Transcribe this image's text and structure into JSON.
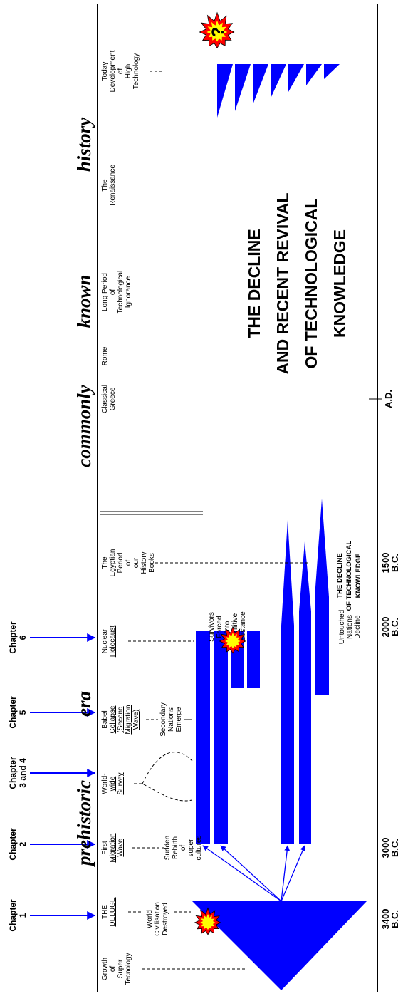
{
  "chapters": [
    {
      "title": "Chapter",
      "number": "1"
    },
    {
      "title": "Chapter",
      "number": "2"
    },
    {
      "title": "Chapter",
      "number": "3 and 4"
    },
    {
      "title": "Chapter",
      "number": "5"
    },
    {
      "title": "Chapter",
      "number": "6"
    }
  ],
  "era_labels": [
    "prehistoric",
    "era",
    "commonly",
    "known",
    "history"
  ],
  "events": [
    {
      "text": [
        "Growth",
        "of",
        "Super",
        "Tecnology"
      ]
    },
    {
      "title": [
        "THE",
        "DELUGE"
      ]
    },
    {
      "title": [
        "First",
        "Migration",
        "Wave"
      ]
    },
    {
      "title": [
        "World-",
        "wide",
        "Survey"
      ]
    },
    {
      "title": [
        "Babel",
        "Collapse",
        "(Second",
        "Migration",
        "Wave)"
      ]
    },
    {
      "title": [
        "Nuclear",
        "Holocaust"
      ]
    },
    {
      "title": [
        "The"
      ],
      "text": [
        "Egyptian",
        "Period",
        "of",
        "our",
        "History",
        "Books"
      ]
    },
    {
      "text": [
        "Classical",
        "Greece"
      ]
    },
    {
      "text": [
        "Rome"
      ]
    },
    {
      "text": [
        "Long Period",
        "of",
        "Technological",
        "Ignorance"
      ]
    },
    {
      "text": [
        "The",
        "Renaissance"
      ]
    },
    {
      "title": [
        "Today"
      ],
      "text": [
        "Development",
        "of",
        "High",
        "Technology"
      ]
    }
  ],
  "descriptions": [
    [
      "World",
      "Civilisation",
      "Destroyed"
    ],
    [
      "Sudden",
      "Rebirth",
      "of",
      "super",
      "cultures"
    ],
    [
      "Secondary",
      "Nations",
      "Emerge"
    ],
    [
      "Survivors",
      "Forced",
      "Into",
      "Primitive",
      "Existance"
    ],
    [
      "Untouched",
      "Nations",
      "Decline"
    ]
  ],
  "explosion_mark": "?",
  "main_title": [
    "THE DECLINE",
    "AND RECENT REVIVAL",
    "OF TECHNOLOGICAL",
    "KNOWLEDGE"
  ],
  "decline_label": [
    "THE DECLINE",
    "OF TECHNOLOGICAL",
    "KNOWLEDGE"
  ],
  "dates": [
    {
      "year": "3400",
      "era": "B.C."
    },
    {
      "year": "3000",
      "era": "B.C."
    },
    {
      "year": "2000",
      "era": "B.C."
    },
    {
      "year": "1500",
      "era": "B.C."
    },
    {
      "era": "A.D."
    }
  ]
}
